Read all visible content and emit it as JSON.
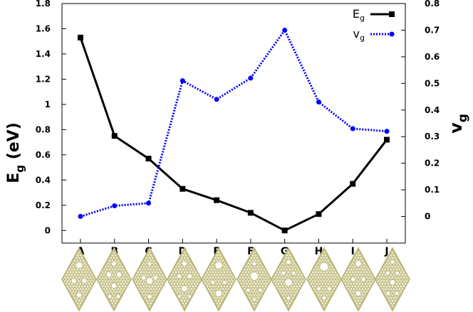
{
  "chart_data": {
    "type": "line",
    "categories": [
      "A",
      "B",
      "C",
      "D",
      "E",
      "F",
      "G",
      "H",
      "I",
      "J"
    ],
    "series": [
      {
        "name": "Eg",
        "axis": "left",
        "color": "#000000",
        "style": "solid",
        "marker": "square",
        "values": [
          1.53,
          0.75,
          0.57,
          0.33,
          0.24,
          0.14,
          0.0,
          0.13,
          0.37,
          0.72
        ]
      },
      {
        "name": "vg",
        "axis": "right",
        "color": "#0000ff",
        "style": "dotted",
        "marker": "circle",
        "values": [
          0.0,
          0.04,
          0.05,
          0.51,
          0.44,
          0.52,
          0.7,
          0.43,
          0.33,
          0.32
        ]
      }
    ],
    "y_left": {
      "label": "Eg (eV)",
      "label_main": "E",
      "label_sub": "g",
      "label_rest": " (eV)",
      "ylim": [
        -0.1,
        1.8
      ],
      "ticks": [
        "0",
        "0.2",
        "0.4",
        "0.6",
        "0.8",
        "1",
        "1.2",
        "1.4",
        "1.6",
        "1.8"
      ]
    },
    "y_right": {
      "label": "vg",
      "label_main": "v",
      "label_sub": "g",
      "ylim": [
        -0.1,
        0.8
      ],
      "ticks": [
        "0",
        "0.1",
        "0.2",
        "0.3",
        "0.4",
        "0.5",
        "0.6",
        "0.7",
        "0.8"
      ]
    },
    "legend": {
      "position": "top-right",
      "entries": [
        {
          "main": "E",
          "sub": "g"
        },
        {
          "main": "v",
          "sub": "g"
        }
      ]
    },
    "grid": false,
    "structure_thumbnails": {
      "count": 10,
      "color": "#b5b070"
    }
  }
}
